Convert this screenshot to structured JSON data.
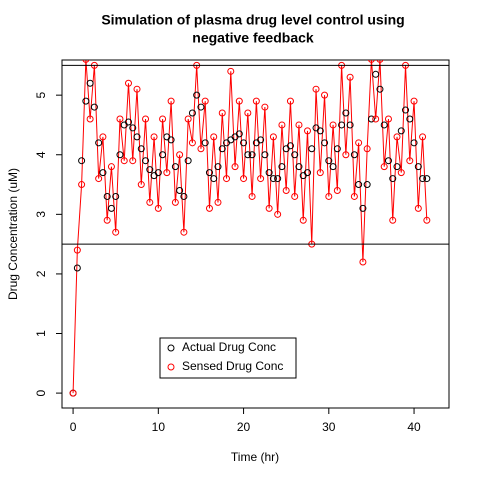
{
  "chart_data": {
    "type": "scatter",
    "title": [
      "Simulation of plasma drug level control using",
      "negative feedback"
    ],
    "x_label": "Time (hr)",
    "y_label": "Drug Concentration (uM)",
    "xlim": [
      -1.3,
      44.1
    ],
    "ylim": [
      -0.25,
      5.59
    ],
    "xticks": [
      0,
      10,
      20,
      30,
      40
    ],
    "yticks": [
      0,
      1,
      2,
      3,
      4,
      5
    ],
    "hlines": [
      2.5,
      5.5
    ],
    "x": [
      0,
      0.5,
      1,
      1.5,
      2,
      2.5,
      3,
      3.5,
      4,
      4.5,
      5,
      5.5,
      6,
      6.5,
      7,
      7.5,
      8,
      8.5,
      9,
      9.5,
      10,
      10.5,
      11,
      11.5,
      12,
      12.5,
      13,
      13.5,
      14,
      14.5,
      15,
      15.5,
      16,
      16.5,
      17,
      17.5,
      18,
      18.5,
      19,
      19.5,
      20,
      20.5,
      21,
      21.5,
      22,
      22.5,
      23,
      23.5,
      24,
      24.5,
      25,
      25.5,
      26,
      26.5,
      27,
      27.5,
      28,
      28.5,
      29,
      29.5,
      30,
      30.5,
      31,
      31.5,
      32,
      32.5,
      33,
      33.5,
      34,
      34.5,
      35,
      35.5,
      36,
      36.5,
      37,
      37.5,
      38,
      38.5,
      39,
      39.5,
      40,
      40.5,
      41,
      41.5
    ],
    "series": [
      {
        "name": "Actual Drug Conc",
        "color": "#000000",
        "line": false,
        "values": [
          0,
          2.1,
          3.9,
          4.9,
          5.2,
          4.8,
          4.2,
          3.7,
          3.3,
          3.1,
          3.3,
          4.0,
          4.5,
          4.55,
          4.45,
          4.3,
          4.1,
          3.9,
          3.75,
          3.65,
          3.7,
          4.0,
          4.3,
          4.25,
          3.8,
          3.4,
          3.3,
          3.9,
          4.7,
          5.0,
          4.8,
          4.2,
          3.7,
          3.6,
          3.8,
          4.1,
          4.2,
          4.25,
          4.3,
          4.35,
          4.2,
          4.0,
          4.0,
          4.2,
          4.25,
          4.0,
          3.7,
          3.6,
          3.6,
          3.8,
          4.1,
          4.15,
          4.0,
          3.8,
          3.65,
          3.7,
          4.1,
          4.45,
          4.4,
          4.2,
          3.9,
          3.8,
          4.1,
          4.5,
          4.7,
          4.5,
          4.0,
          3.5,
          3.1,
          3.5,
          4.6,
          5.35,
          5.1,
          4.5,
          3.9,
          3.6,
          3.8,
          4.4,
          4.75,
          4.6,
          4.2,
          3.8,
          3.6,
          3.6
        ]
      },
      {
        "name": "Sensed Drug Conc",
        "color": "#ff0000",
        "line": true,
        "values": [
          0,
          2.4,
          3.5,
          5.6,
          4.6,
          5.5,
          3.6,
          4.3,
          2.9,
          3.8,
          2.7,
          4.6,
          3.9,
          5.2,
          3.9,
          5.1,
          3.5,
          4.6,
          3.2,
          4.3,
          3.1,
          4.6,
          3.7,
          4.9,
          3.2,
          4.0,
          2.7,
          4.6,
          4.2,
          5.5,
          4.1,
          4.9,
          3.1,
          4.3,
          3.2,
          4.7,
          3.6,
          5.4,
          3.8,
          4.9,
          3.6,
          4.7,
          3.3,
          4.9,
          3.6,
          4.8,
          3.1,
          4.3,
          3.0,
          4.5,
          3.4,
          4.9,
          3.3,
          4.5,
          2.9,
          4.4,
          2.5,
          5.1,
          3.7,
          5.0,
          3.3,
          4.5,
          3.4,
          5.5,
          4.0,
          5.3,
          3.3,
          4.2,
          2.2,
          4.1,
          5.6,
          4.6,
          5.6,
          3.8,
          4.6,
          2.9,
          4.3,
          3.7,
          5.5,
          3.9,
          4.9,
          3.1,
          4.3,
          2.9
        ]
      }
    ]
  }
}
